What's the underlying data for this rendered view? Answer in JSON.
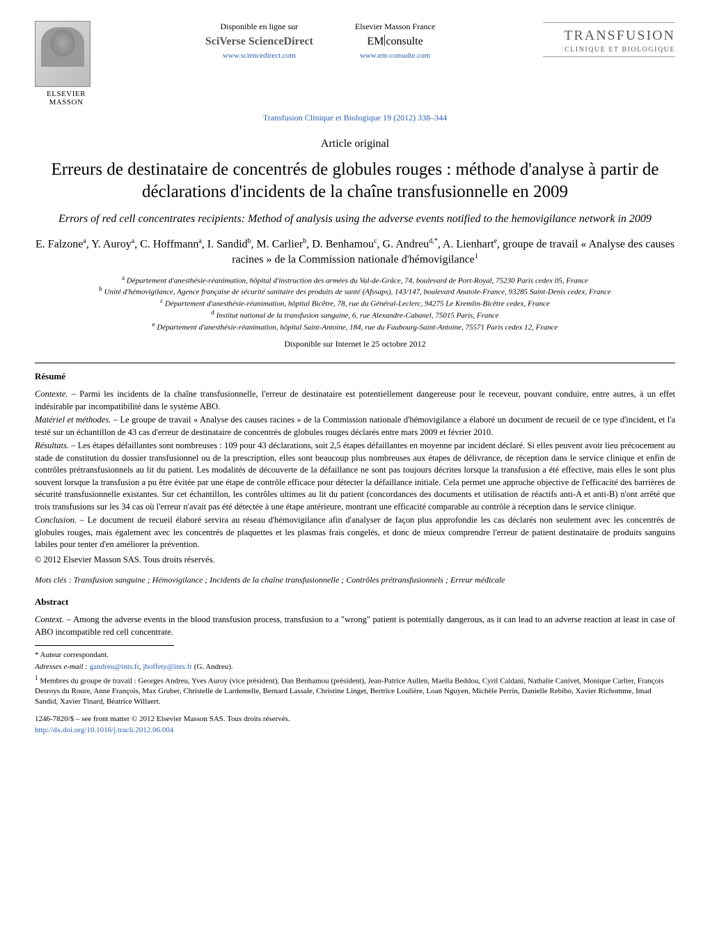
{
  "header": {
    "publisher_logo_label": "ELSEVIER MASSON",
    "left_link": {
      "caption": "Disponible en ligne sur",
      "brand": "SciVerse ScienceDirect",
      "url": "www.sciencedirect.com"
    },
    "right_link": {
      "caption": "Elsevier Masson France",
      "brand_em": "EM",
      "brand_rest": "consulte",
      "url": "www.em-consulte.com"
    },
    "journal": {
      "line1": "TRANSFUSION",
      "line2": "CLINIQUE ET BIOLOGIQUE"
    },
    "citation": "Transfusion Clinique et Biologique 19 (2012) 338–344"
  },
  "article": {
    "type": "Article original",
    "title_fr": "Erreurs de destinataire de concentrés de globules rouges : méthode d'analyse à partir de déclarations d'incidents de la chaîne transfusionnelle en 2009",
    "title_en": "Errors of red cell concentrates recipients: Method of analysis using the adverse events notified to the hemovigilance network in 2009",
    "authors_html": "E. Falzone<sup>a</sup>, Y. Auroy<sup>a</sup>, C. Hoffmann<sup>a</sup>, I. Sandid<sup>b</sup>, M. Carlier<sup>b</sup>, D. Benhamou<sup>c</sup>, G. Andreu<sup>d,*</sup>, A. Lienhart<sup>e</sup>, groupe de travail « Analyse des causes racines » de la Commission nationale d'hémovigilance<sup>1</sup>",
    "affiliations": [
      "<sup>a</sup> Département d'anesthésie-réanimation, hôpital d'instruction des armées du Val-de-Grâce, 74, boulevard de Port-Royal, 75230 Paris cedex 05, France",
      "<sup>b</sup> Unité d'hémovigilance, Agence française de sécurité sanitaire des produits de santé (Afssaps), 143/147, boulevard Anatole-France, 93285 Saint-Denis cedex, France",
      "<sup>c</sup> Département d'anesthésie-réanimation, hôpital Bicêtre, 78, rue du Général-Leclerc, 94275 Le Kremlin-Bicêtre cedex, France",
      "<sup>d</sup> Institut national de la transfusion sanguine, 6, rue Alexandre-Cabanel, 75015 Paris, France",
      "<sup>e</sup> Département d'anesthésie-réanimation, hôpital Saint-Antoine, 184, rue du Faubourg-Saint-Antoine, 75571 Paris cedex 12, France"
    ],
    "online_date": "Disponible sur Internet le 25 octobre 2012"
  },
  "resume": {
    "heading": "Résumé",
    "contexte_label": "Contexte. – ",
    "contexte": "Parmi les incidents de la chaîne transfusionnelle, l'erreur de destinataire est potentiellement dangereuse pour le receveur, pouvant conduire, entre autres, à un effet indésirable par incompatibilité dans le système ABO.",
    "materiel_label": "Matériel et méthodes. – ",
    "materiel": "Le groupe de travail « Analyse des causes racines » de la Commission nationale d'hémovigilance a élaboré un document de recueil de ce type d'incident, et l'a testé sur un échantillon de 43 cas d'erreur de destinataire de concentrés de globules rouges déclarés entre mars 2009 et février 2010.",
    "resultats_label": "Résultats. – ",
    "resultats": "Les étapes défaillantes sont nombreuses : 109 pour 43 déclarations, soit 2,5 étapes défaillantes en moyenne par incident déclaré. Si elles peuvent avoir lieu précocement au stade de constitution du dossier transfusionnel ou de la prescription, elles sont beaucoup plus nombreuses aux étapes de délivrance, de réception dans le service clinique et enfin de contrôles prétransfusionnels au lit du patient. Les modalités de découverte de la défaillance ne sont pas toujours décrites lorsque la transfusion a été effective, mais elles le sont plus souvent lorsque la transfusion a pu être évitée par une étape de contrôle efficace pour détecter la défaillance initiale. Cela permet une approche objective de l'efficacité des barrières de sécurité transfusionnelle existantes. Sur cet échantillon, les contrôles ultimes au lit du patient (concordances des documents et utilisation de réactifs anti-A et anti-B) n'ont arrêté que trois transfusions sur les 34 cas où l'erreur n'avait pas été détectée à une étape antérieure, montrant une efficacité comparable au contrôle à réception dans le service clinique.",
    "conclusion_label": "Conclusion. – ",
    "conclusion": "Le document de recueil élaboré servira au réseau d'hémovigilance afin d'analyser de façon plus approfondie les cas déclarés non seulement avec les concentrés de globules rouges, mais également avec les concentrés de plaquettes et les plasmas frais congelés, et donc de mieux comprendre l'erreur de patient destinataire de produits sanguins labiles pour tenter d'en améliorer la prévention.",
    "copyright": "© 2012 Elsevier Masson SAS. Tous droits réservés.",
    "keywords_label": "Mots clés : ",
    "keywords": "Transfusion sanguine ; Hémovigilance ; Incidents de la chaîne transfusionnelle ; Contrôles prétransfusionnels ; Erreur médicale"
  },
  "abstract": {
    "heading": "Abstract",
    "context_label": "Context. – ",
    "context": "Among the adverse events in the blood transfusion process, transfusion to a \"wrong\" patient is potentially dangerous, as it can lead to an adverse reaction at least in case of ABO incompatible red cell concentrate."
  },
  "footnotes": {
    "corr": "* Auteur correspondant.",
    "email_label": "Adresses e-mail : ",
    "email1": "gandreu@ints.fr",
    "email_sep": ", ",
    "email2": "jboffety@ints.fr",
    "email_who": " (G. Andreu).",
    "group_label": "1",
    "group_text": " Membres du groupe de travail : Georges Andreu, Yves Auroy (vice président), Dan Benhamou (président), Jean-Patrice Aullen, Maella Beddou, Cyril Caldani, Nathalie Canivet, Monique Carlier, François Desroys du Roure, Anne François, Max Gruber, Christelle de Lardemelle, Bernard Lassale, Christine Linget, Bertrice Loulière, Loan Nguyen, Michèle Perrin, Danielle Rebibo, Xavier Richomme, Imad Sandid, Xavier Tinard, Béatrice Willaert."
  },
  "bottom": {
    "issn": "1246-7820/$ – see front matter © 2012 Elsevier Masson SAS. Tous droits réservés.",
    "doi": "http://dx.doi.org/10.1016/j.tracli.2012.06.004"
  },
  "colors": {
    "link": "#2a5db0",
    "text": "#000000",
    "grey": "#5a5a5a"
  }
}
